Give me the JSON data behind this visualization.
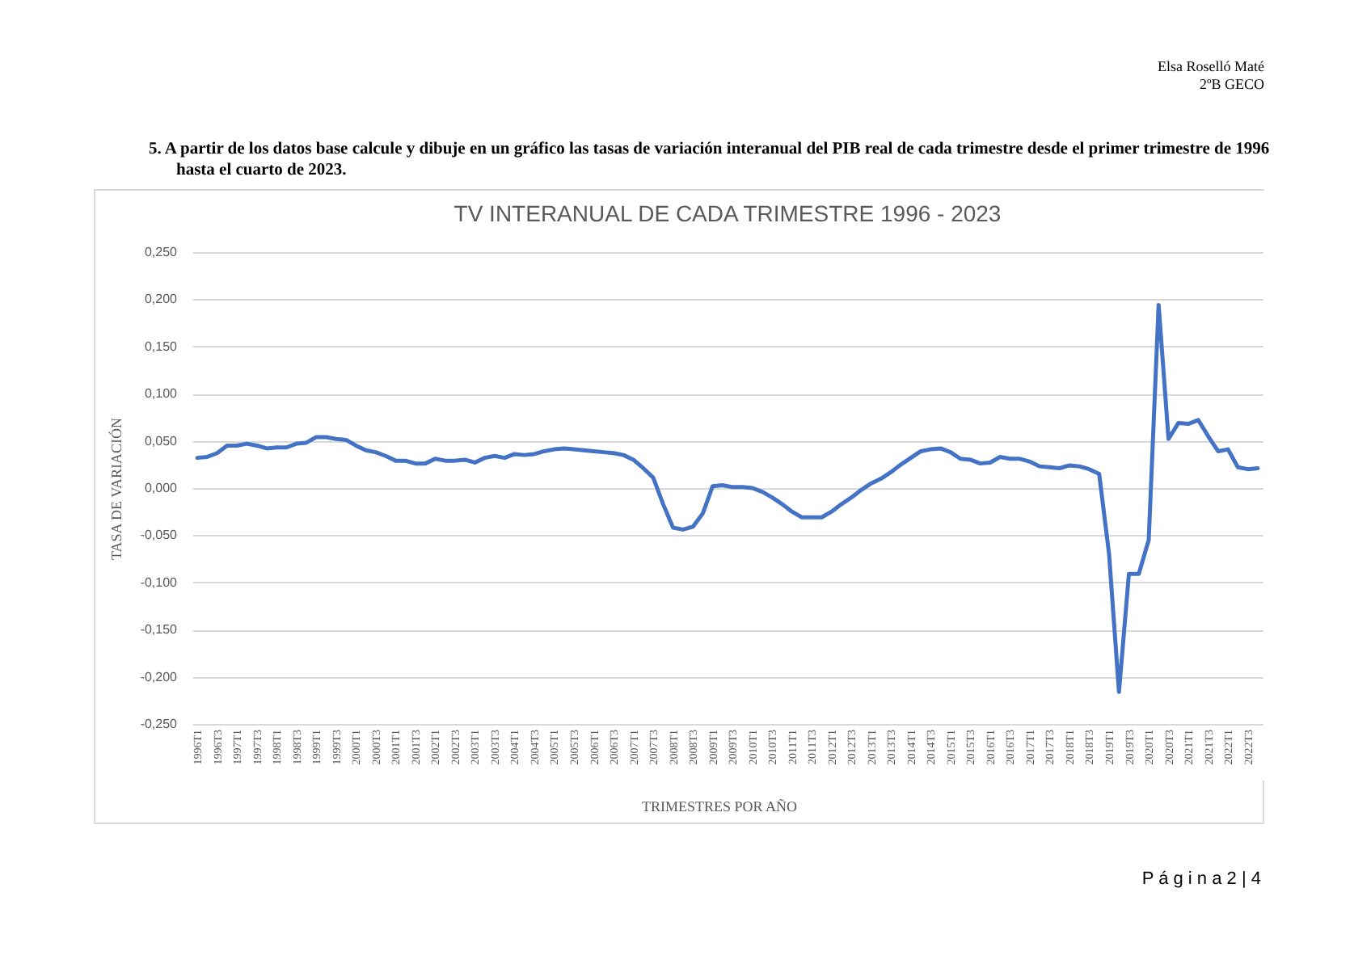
{
  "chart_data": {
    "type": "line",
    "title": "TV INTERANUAL DE CADA TRIMESTRE 1996 - 2023",
    "xlabel": "TRIMESTRES POR AÑO",
    "ylabel": "TASA DE VARIACIÓN",
    "annotations": [
      "Elsa Roselló Maté",
      "2ºB GECO",
      "5. A partir de los datos base calcule y dibuje en un gráfico las tasas de variación interanual del PIB real de cada trimestre desde el primer trimestre de 1996 hasta el cuarto de 2023.",
      "P á g i n a 2 | 4"
    ],
    "categories": [
      "1996T1",
      null,
      "1996T3",
      null,
      "1997T1",
      null,
      "1997T3",
      null,
      "1998T1",
      null,
      "1998T3",
      null,
      "1999T1",
      null,
      "1999T3",
      null,
      "2000T1",
      null,
      "2000T3",
      null,
      "2001T1",
      null,
      "2001T3",
      null,
      "2002T1",
      null,
      "2002T3",
      null,
      "2003T1",
      null,
      "2003T3",
      null,
      "2004T1",
      null,
      "2004T3",
      null,
      "2005T1",
      null,
      "2005T3",
      null,
      "2006T1",
      null,
      "2006T3",
      null,
      "2007T1",
      null,
      "2007T3",
      null,
      "2008T1",
      null,
      "2008T3",
      null,
      "2009T1",
      null,
      "2009T3",
      null,
      "2010T1",
      null,
      "2010T3",
      null,
      "2011T1",
      null,
      "2011T3",
      null,
      "2012T1",
      null,
      "2012T3",
      null,
      "2013T1",
      null,
      "2013T3",
      null,
      "2014T1",
      null,
      "2014T3",
      null,
      "2015T1",
      null,
      "2015T3",
      null,
      "2016T1",
      null,
      "2016T3",
      null,
      "2017T1",
      null,
      "2017T3",
      null,
      "2018T1",
      null,
      "2018T3",
      null,
      "2019T1",
      null,
      "2019T3",
      null,
      "2020T1",
      null,
      "2020T3",
      null,
      "2021T1",
      null,
      "2021T3",
      null,
      "2022T1",
      null,
      "2022T3",
      null
    ],
    "series": [
      {
        "color": "#4472c4",
        "values": [
          0.032,
          0.033,
          0.037,
          0.045,
          0.045,
          0.047,
          0.045,
          0.042,
          0.043,
          0.043,
          0.047,
          0.048,
          0.054,
          0.054,
          0.052,
          0.051,
          0.045,
          0.04,
          0.038,
          0.034,
          0.029,
          0.029,
          0.026,
          0.026,
          0.031,
          0.029,
          0.029,
          0.03,
          0.027,
          0.032,
          0.034,
          0.032,
          0.036,
          0.035,
          0.036,
          0.039,
          0.041,
          0.042,
          0.041,
          0.04,
          0.039,
          0.038,
          0.037,
          0.035,
          0.03,
          0.021,
          0.011,
          -0.017,
          -0.042,
          -0.044,
          -0.041,
          -0.027,
          0.002,
          0.003,
          0.001,
          0.001,
          0.0,
          -0.004,
          -0.01,
          -0.017,
          -0.025,
          -0.031,
          -0.031,
          -0.031,
          -0.025,
          -0.017,
          -0.01,
          -0.002,
          0.005,
          0.01,
          0.017,
          0.025,
          0.032,
          0.039,
          0.041,
          0.042,
          0.038,
          0.031,
          0.03,
          0.026,
          0.027,
          0.033,
          0.031,
          0.031,
          0.028,
          0.023,
          0.022,
          0.021,
          0.024,
          0.023,
          0.02,
          0.015,
          -0.07,
          -0.216,
          -0.091,
          -0.091,
          -0.055,
          0.194,
          0.052,
          0.069,
          0.068,
          0.072,
          0.055,
          0.039,
          0.041,
          0.022,
          0.02,
          0.021
        ]
      }
    ],
    "ylim": [
      -0.25,
      0.25
    ],
    "yticks": [
      {
        "value": -0.25,
        "label": "-0,250"
      },
      {
        "value": -0.2,
        "label": "-0,200"
      },
      {
        "value": -0.15,
        "label": "-0,150"
      },
      {
        "value": -0.1,
        "label": "-0,100"
      },
      {
        "value": -0.05,
        "label": "-0,050"
      },
      {
        "value": 0,
        "label": "0,000"
      },
      {
        "value": 0.05,
        "label": "0,050"
      },
      {
        "value": 0.1,
        "label": "0,100"
      },
      {
        "value": 0.15,
        "label": "0,150"
      },
      {
        "value": 0.2,
        "label": "0,200"
      },
      {
        "value": 0.25,
        "label": "0,250"
      }
    ],
    "grid": "y",
    "line_style": "solid"
  }
}
